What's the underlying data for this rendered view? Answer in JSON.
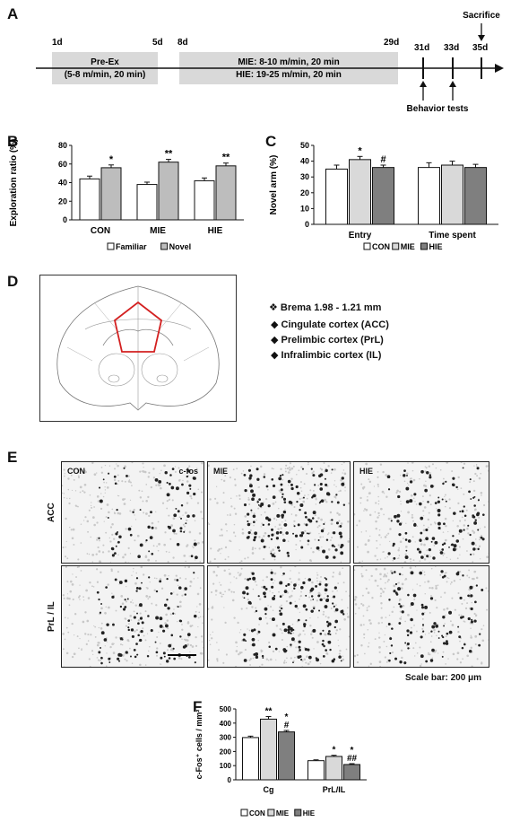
{
  "panels": [
    "A",
    "B",
    "C",
    "D",
    "E",
    "F"
  ],
  "timeline": {
    "days": [
      "1d",
      "5d",
      "8d",
      "29d",
      "31d",
      "33d",
      "35d"
    ],
    "preex_line1": "Pre-Ex",
    "preex_line2": "(5-8 m/min, 20 min)",
    "train_line1": "MIE: 8-10 m/min, 20 min",
    "train_line2": "HIE: 19-25 m/min, 20 min",
    "sacrifice": "Sacrifice",
    "behavior": "Behavior tests"
  },
  "chart_data": [
    {
      "panel": "B",
      "type": "bar",
      "ylabel": "Exploration ratio (%)",
      "ylim": [
        0,
        80
      ],
      "yticks": [
        0,
        20,
        40,
        60,
        80
      ],
      "categories": [
        "CON",
        "MIE",
        "HIE"
      ],
      "series": [
        {
          "name": "Familiar",
          "values": [
            44,
            38,
            42
          ],
          "errors": [
            3,
            2.5,
            3
          ],
          "color": "#ffffff"
        },
        {
          "name": "Novel",
          "values": [
            56,
            62,
            58
          ],
          "errors": [
            3,
            3,
            3
          ],
          "color": "#bdbdbd"
        }
      ],
      "annotations": [
        {
          "category": "CON",
          "series": "Novel",
          "text": "*"
        },
        {
          "category": "MIE",
          "series": "Novel",
          "text": "**"
        },
        {
          "category": "HIE",
          "series": "Novel",
          "text": "**"
        }
      ],
      "legend": [
        "Familiar",
        "Novel"
      ],
      "legend_position": "bottom"
    },
    {
      "panel": "C",
      "type": "bar",
      "ylabel": "Novel arm (%)",
      "ylim": [
        0,
        50
      ],
      "yticks": [
        0,
        10,
        20,
        30,
        40,
        50
      ],
      "categories": [
        "Entry",
        "Time spent"
      ],
      "series": [
        {
          "name": "CON",
          "values": [
            35,
            36
          ],
          "errors": [
            2.5,
            3
          ],
          "color": "#ffffff"
        },
        {
          "name": "MIE",
          "values": [
            41,
            37.5
          ],
          "errors": [
            2,
            2.5
          ],
          "color": "#d9d9d9"
        },
        {
          "name": "HIE",
          "values": [
            36,
            36
          ],
          "errors": [
            1.5,
            2
          ],
          "color": "#7f7f7f"
        }
      ],
      "annotations": [
        {
          "category": "Entry",
          "series": "MIE",
          "text": "*"
        },
        {
          "category": "Entry",
          "series": "HIE",
          "text": "#"
        }
      ],
      "legend": [
        "CON",
        "MIE",
        "HIE"
      ],
      "legend_position": "bottom"
    },
    {
      "panel": "F",
      "type": "bar",
      "ylabel": "c-Fos⁺ cells / mm²",
      "ylim": [
        0,
        500
      ],
      "yticks": [
        0,
        100,
        200,
        300,
        400,
        500
      ],
      "categories": [
        "Cg",
        "PrL/IL"
      ],
      "series": [
        {
          "name": "CON",
          "values": [
            298,
            135
          ],
          "errors": [
            10,
            6
          ],
          "color": "#ffffff"
        },
        {
          "name": "MIE",
          "values": [
            428,
            165
          ],
          "errors": [
            18,
            8
          ],
          "color": "#d9d9d9"
        },
        {
          "name": "HIE",
          "values": [
            338,
            108
          ],
          "errors": [
            10,
            6
          ],
          "color": "#7f7f7f"
        }
      ],
      "annotations": [
        {
          "category": "Cg",
          "series": "MIE",
          "text": "**"
        },
        {
          "category": "Cg",
          "series": "HIE",
          "text": "#"
        },
        {
          "category": "Cg",
          "series": "HIE",
          "text": "*"
        },
        {
          "category": "PrL/IL",
          "series": "MIE",
          "text": "*"
        },
        {
          "category": "PrL/IL",
          "series": "HIE",
          "text": "##"
        },
        {
          "category": "PrL/IL",
          "series": "HIE",
          "text": "*"
        }
      ],
      "legend": [
        "CON",
        "MIE",
        "HIE"
      ],
      "legend_position": "bottom"
    }
  ],
  "atlas": {
    "bregma": "❖ Brema 1.98 - 1.21 mm",
    "regions": [
      "◆ Cingulate cortex (ACC)",
      "◆ Prelimbic cortex (PrL)",
      "◆ Infralimbic cortex (IL)"
    ]
  },
  "micro": {
    "cols": [
      "CON",
      "MIE",
      "HIE"
    ],
    "marker": "c-fos",
    "rows": [
      "ACC",
      "PrL / IL"
    ],
    "scale": "Scale bar: 200 μm"
  }
}
